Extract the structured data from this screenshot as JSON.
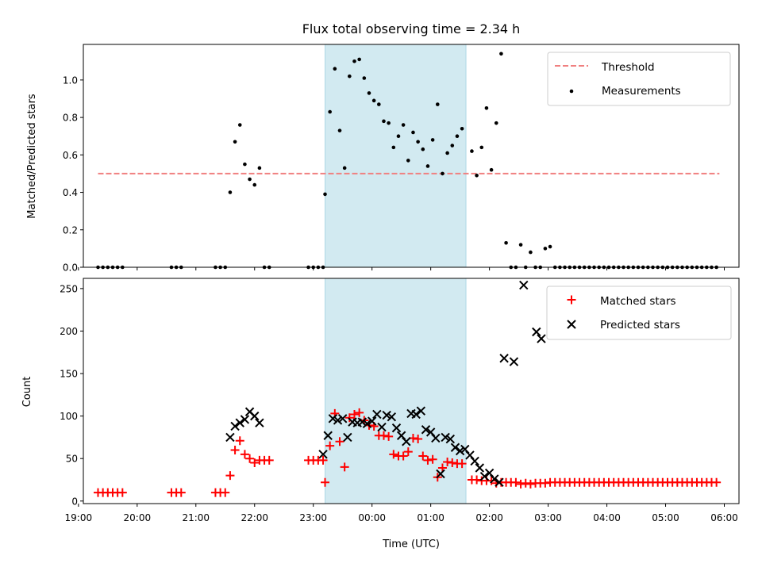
{
  "chart_data": [
    {
      "type": "scatter",
      "title": "Flux total observing time = 2.34 h",
      "xlabel": "",
      "ylabel": "Matched/Predicted stars",
      "xlim": [
        "19:05",
        "06:15"
      ],
      "ylim": [
        0,
        1.19
      ],
      "yticks": [
        "0.0",
        "0.2",
        "0.4",
        "0.6",
        "0.8",
        "1.0"
      ],
      "shaded_span": {
        "start": "23:12",
        "end": "01:36",
        "color": "#add8e6"
      },
      "threshold": {
        "label": "Threshold",
        "value": 0.5,
        "from": "19:20",
        "to": "05:55",
        "color": "#f08080"
      },
      "measurements_label": "Measurements",
      "measurements": [
        [
          "19:20",
          0
        ],
        [
          "19:25",
          0
        ],
        [
          "19:30",
          0
        ],
        [
          "19:35",
          0
        ],
        [
          "19:40",
          0
        ],
        [
          "19:45",
          0
        ],
        [
          "20:35",
          0
        ],
        [
          "20:40",
          0
        ],
        [
          "20:45",
          0
        ],
        [
          "21:20",
          0
        ],
        [
          "21:25",
          0
        ],
        [
          "21:30",
          0
        ],
        [
          "21:35",
          0.4
        ],
        [
          "21:40",
          0.67
        ],
        [
          "21:45",
          0.76
        ],
        [
          "21:50",
          0.55
        ],
        [
          "21:55",
          0.47
        ],
        [
          "22:00",
          0.44
        ],
        [
          "22:05",
          0.53
        ],
        [
          "22:10",
          0
        ],
        [
          "22:15",
          0
        ],
        [
          "22:55",
          0
        ],
        [
          "23:00",
          0
        ],
        [
          "23:05",
          0
        ],
        [
          "23:10",
          0
        ],
        [
          "23:12",
          0.39
        ],
        [
          "23:17",
          0.83
        ],
        [
          "23:22",
          1.06
        ],
        [
          "23:27",
          0.73
        ],
        [
          "23:32",
          0.53
        ],
        [
          "23:37",
          1.02
        ],
        [
          "23:42",
          1.1
        ],
        [
          "23:47",
          1.11
        ],
        [
          "23:52",
          1.01
        ],
        [
          "23:57",
          0.93
        ],
        [
          "00:02",
          0.89
        ],
        [
          "00:07",
          0.87
        ],
        [
          "00:12",
          0.78
        ],
        [
          "00:17",
          0.77
        ],
        [
          "00:22",
          0.64
        ],
        [
          "00:27",
          0.7
        ],
        [
          "00:32",
          0.76
        ],
        [
          "00:37",
          0.57
        ],
        [
          "00:42",
          0.72
        ],
        [
          "00:47",
          0.67
        ],
        [
          "00:52",
          0.63
        ],
        [
          "00:57",
          0.54
        ],
        [
          "01:02",
          0.68
        ],
        [
          "01:07",
          0.87
        ],
        [
          "01:12",
          0.5
        ],
        [
          "01:17",
          0.61
        ],
        [
          "01:22",
          0.65
        ],
        [
          "01:27",
          0.7
        ],
        [
          "01:32",
          0.74
        ],
        [
          "01:42",
          0.62
        ],
        [
          "01:47",
          0.49
        ],
        [
          "01:52",
          0.64
        ],
        [
          "01:57",
          0.85
        ],
        [
          "02:02",
          0.52
        ],
        [
          "02:07",
          0.77
        ],
        [
          "02:12",
          1.14
        ],
        [
          "02:17",
          0.13
        ],
        [
          "02:22",
          0
        ],
        [
          "02:27",
          0
        ],
        [
          "02:32",
          0.12
        ],
        [
          "02:37",
          0
        ],
        [
          "02:42",
          0.08
        ],
        [
          "02:47",
          0
        ],
        [
          "02:52",
          0
        ],
        [
          "02:57",
          0.1
        ],
        [
          "03:02",
          0.11
        ],
        [
          "03:07",
          0
        ],
        [
          "03:12",
          0
        ],
        [
          "03:17",
          0
        ],
        [
          "03:22",
          0
        ],
        [
          "03:27",
          0
        ],
        [
          "03:32",
          0
        ],
        [
          "03:37",
          0
        ],
        [
          "03:42",
          0
        ],
        [
          "03:47",
          0
        ],
        [
          "03:52",
          0
        ],
        [
          "03:57",
          0
        ],
        [
          "04:02",
          0
        ],
        [
          "04:07",
          0
        ],
        [
          "04:12",
          0
        ],
        [
          "04:17",
          0
        ],
        [
          "04:22",
          0
        ],
        [
          "04:27",
          0
        ],
        [
          "04:32",
          0
        ],
        [
          "04:37",
          0
        ],
        [
          "04:42",
          0
        ],
        [
          "04:47",
          0
        ],
        [
          "04:52",
          0
        ],
        [
          "04:57",
          0
        ],
        [
          "05:02",
          0
        ],
        [
          "05:07",
          0
        ],
        [
          "05:12",
          0
        ],
        [
          "05:17",
          0
        ],
        [
          "05:22",
          0
        ],
        [
          "05:27",
          0
        ],
        [
          "05:32",
          0
        ],
        [
          "05:37",
          0
        ],
        [
          "05:42",
          0
        ],
        [
          "05:47",
          0
        ],
        [
          "05:52",
          0
        ]
      ],
      "legend": {
        "placement": "top-right",
        "entries": [
          "Threshold",
          "Measurements"
        ]
      },
      "colors": {
        "measurements": "#000000",
        "threshold": "#f08080",
        "span": "#add8e6"
      }
    },
    {
      "type": "scatter",
      "title": "",
      "xlabel": "Time (UTC)",
      "ylabel": "Count",
      "xlim": [
        "19:05",
        "06:15"
      ],
      "ylim": [
        -3,
        262
      ],
      "xticks": [
        "19:00",
        "20:00",
        "21:00",
        "22:00",
        "23:00",
        "00:00",
        "01:00",
        "02:00",
        "03:00",
        "04:00",
        "05:00",
        "06:00"
      ],
      "yticks": [
        "0",
        "50",
        "100",
        "150",
        "200",
        "250"
      ],
      "shaded_span": {
        "start": "23:12",
        "end": "01:36",
        "color": "#add8e6"
      },
      "series": [
        {
          "name": "Matched stars",
          "marker": "+",
          "color": "#ff0000",
          "points": [
            [
              "19:20",
              10
            ],
            [
              "19:25",
              10
            ],
            [
              "19:30",
              10
            ],
            [
              "19:35",
              10
            ],
            [
              "19:40",
              10
            ],
            [
              "19:45",
              10
            ],
            [
              "20:35",
              10
            ],
            [
              "20:40",
              10
            ],
            [
              "20:45",
              10
            ],
            [
              "21:20",
              10
            ],
            [
              "21:25",
              10
            ],
            [
              "21:30",
              10
            ],
            [
              "21:35",
              30
            ],
            [
              "21:40",
              60
            ],
            [
              "21:45",
              71
            ],
            [
              "21:50",
              55
            ],
            [
              "21:55",
              50
            ],
            [
              "22:00",
              45
            ],
            [
              "22:05",
              48
            ],
            [
              "22:10",
              48
            ],
            [
              "22:15",
              48
            ],
            [
              "22:55",
              48
            ],
            [
              "23:00",
              48
            ],
            [
              "23:05",
              48
            ],
            [
              "23:10",
              48
            ],
            [
              "23:12",
              22
            ],
            [
              "23:17",
              65
            ],
            [
              "23:22",
              103
            ],
            [
              "23:27",
              70
            ],
            [
              "23:32",
              40
            ],
            [
              "23:37",
              98
            ],
            [
              "23:42",
              102
            ],
            [
              "23:47",
              104
            ],
            [
              "23:52",
              95
            ],
            [
              "23:57",
              89
            ],
            [
              "00:02",
              88
            ],
            [
              "00:07",
              77
            ],
            [
              "00:12",
              77
            ],
            [
              "00:17",
              76
            ],
            [
              "00:22",
              55
            ],
            [
              "00:27",
              53
            ],
            [
              "00:32",
              53
            ],
            [
              "00:37",
              58
            ],
            [
              "00:42",
              74
            ],
            [
              "00:47",
              73
            ],
            [
              "00:52",
              53
            ],
            [
              "00:57",
              48
            ],
            [
              "01:02",
              49
            ],
            [
              "01:07",
              28
            ],
            [
              "01:12",
              39
            ],
            [
              "01:17",
              46
            ],
            [
              "01:22",
              45
            ],
            [
              "01:27",
              44
            ],
            [
              "01:32",
              44
            ],
            [
              "01:42",
              25
            ],
            [
              "01:47",
              25
            ],
            [
              "01:52",
              24
            ],
            [
              "01:57",
              24
            ],
            [
              "02:02",
              24
            ],
            [
              "02:07",
              21
            ],
            [
              "02:12",
              22
            ],
            [
              "02:17",
              22
            ],
            [
              "02:22",
              22
            ],
            [
              "02:27",
              22
            ],
            [
              "02:32",
              20
            ],
            [
              "02:37",
              21
            ],
            [
              "02:42",
              20
            ],
            [
              "02:47",
              21
            ],
            [
              "02:52",
              21
            ],
            [
              "02:57",
              21
            ],
            [
              "03:02",
              22
            ],
            [
              "03:07",
              22
            ],
            [
              "03:12",
              22
            ],
            [
              "03:17",
              22
            ],
            [
              "03:22",
              22
            ],
            [
              "03:27",
              22
            ],
            [
              "03:32",
              22
            ],
            [
              "03:37",
              22
            ],
            [
              "03:42",
              22
            ],
            [
              "03:47",
              22
            ],
            [
              "03:52",
              22
            ],
            [
              "03:57",
              22
            ],
            [
              "04:02",
              22
            ],
            [
              "04:07",
              22
            ],
            [
              "04:12",
              22
            ],
            [
              "04:17",
              22
            ],
            [
              "04:22",
              22
            ],
            [
              "04:27",
              22
            ],
            [
              "04:32",
              22
            ],
            [
              "04:37",
              22
            ],
            [
              "04:42",
              22
            ],
            [
              "04:47",
              22
            ],
            [
              "04:52",
              22
            ],
            [
              "04:57",
              22
            ],
            [
              "05:02",
              22
            ],
            [
              "05:07",
              22
            ],
            [
              "05:12",
              22
            ],
            [
              "05:17",
              22
            ],
            [
              "05:22",
              22
            ],
            [
              "05:27",
              22
            ],
            [
              "05:32",
              22
            ],
            [
              "05:37",
              22
            ],
            [
              "05:42",
              22
            ],
            [
              "05:47",
              22
            ],
            [
              "05:52",
              22
            ]
          ]
        },
        {
          "name": "Predicted stars",
          "marker": "x",
          "color": "#000000",
          "points": [
            [
              "21:35",
              75
            ],
            [
              "21:40",
              88
            ],
            [
              "21:45",
              92
            ],
            [
              "21:50",
              96
            ],
            [
              "21:55",
              105
            ],
            [
              "22:00",
              100
            ],
            [
              "22:05",
              92
            ],
            [
              "23:10",
              55
            ],
            [
              "23:15",
              77
            ],
            [
              "23:20",
              97
            ],
            [
              "23:25",
              95
            ],
            [
              "23:30",
              97
            ],
            [
              "23:35",
              75
            ],
            [
              "23:40",
              93
            ],
            [
              "23:45",
              92
            ],
            [
              "23:50",
              93
            ],
            [
              "23:55",
              91
            ],
            [
              "00:00",
              94
            ],
            [
              "00:05",
              102
            ],
            [
              "00:10",
              87
            ],
            [
              "00:15",
              101
            ],
            [
              "00:20",
              99
            ],
            [
              "00:25",
              86
            ],
            [
              "00:30",
              77
            ],
            [
              "00:35",
              70
            ],
            [
              "00:40",
              103
            ],
            [
              "00:45",
              102
            ],
            [
              "00:50",
              106
            ],
            [
              "00:55",
              84
            ],
            [
              "01:00",
              81
            ],
            [
              "01:05",
              74
            ],
            [
              "01:10",
              32
            ],
            [
              "01:15",
              75
            ],
            [
              "01:20",
              73
            ],
            [
              "01:25",
              63
            ],
            [
              "01:30",
              59
            ],
            [
              "01:35",
              61
            ],
            [
              "01:40",
              54
            ],
            [
              "01:45",
              47
            ],
            [
              "01:50",
              39
            ],
            [
              "01:55",
              29
            ],
            [
              "02:00",
              33
            ],
            [
              "02:05",
              26
            ],
            [
              "02:10",
              22
            ],
            [
              "02:15",
              168
            ],
            [
              "02:25",
              164
            ],
            [
              "02:35",
              254
            ],
            [
              "02:48",
              199
            ],
            [
              "02:53",
              191
            ]
          ]
        }
      ],
      "legend": {
        "placement": "top-right",
        "entries": [
          "Matched stars",
          "Predicted stars"
        ]
      }
    }
  ]
}
